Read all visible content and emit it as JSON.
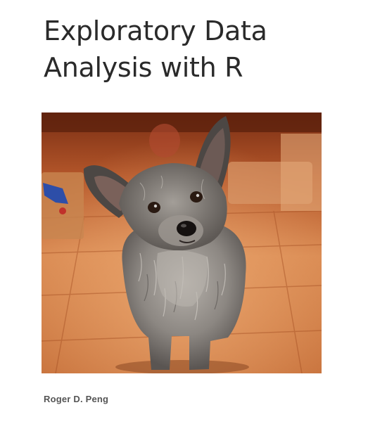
{
  "book": {
    "title_line_1": "Exploratory Data",
    "title_line_2": "Analysis with R",
    "author": "Roger D. Peng"
  },
  "cover_image": {
    "subject": "dog-photo",
    "colors": {
      "floor_light": "#e0915a",
      "floor_dark": "#b85a2a",
      "wall": "#8a3a1c",
      "fur_grey": "#8e8a86",
      "fur_dark": "#4a4644"
    }
  }
}
